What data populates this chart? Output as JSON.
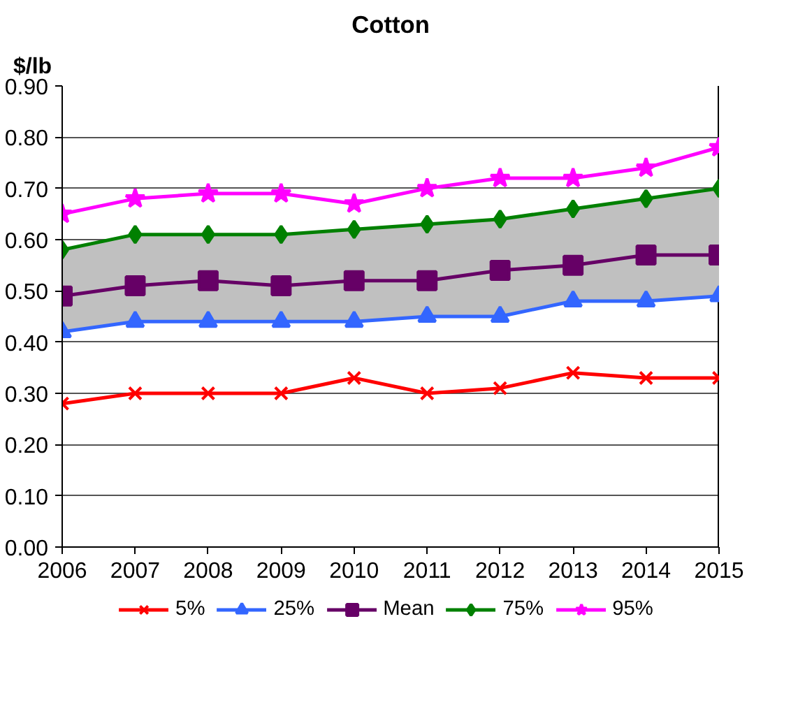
{
  "chart_data": {
    "type": "line",
    "title": "Cotton",
    "ylabel": "$/lb",
    "x": [
      2006,
      2007,
      2008,
      2009,
      2010,
      2011,
      2012,
      2013,
      2014,
      2015
    ],
    "xlim": [
      2006,
      2015
    ],
    "xticks": [
      2006,
      2007,
      2008,
      2009,
      2010,
      2011,
      2012,
      2013,
      2014,
      2015
    ],
    "ylim": [
      0,
      0.9
    ],
    "yticks": [
      {
        "value": 0,
        "label": "0.00"
      },
      {
        "value": 0.1,
        "label": "0.10"
      },
      {
        "value": 0.2,
        "label": "0.20"
      },
      {
        "value": 0.3,
        "label": "0.30"
      },
      {
        "value": 0.4,
        "label": "0.40"
      },
      {
        "value": 0.5,
        "label": "0.50"
      },
      {
        "value": 0.6,
        "label": "0.60"
      },
      {
        "value": 0.7,
        "label": "0.70"
      },
      {
        "value": 0.8,
        "label": "0.80"
      },
      {
        "value": 0.9,
        "label": "0.90"
      }
    ],
    "grid": "y",
    "legend": "bottom",
    "series": [
      {
        "name": "5%",
        "color": "#ff0000",
        "marker": "cross",
        "values": [
          0.28,
          0.3,
          0.3,
          0.3,
          0.33,
          0.3,
          0.31,
          0.34,
          0.33,
          0.33
        ]
      },
      {
        "name": "25%",
        "color": "#3366ff",
        "marker": "triangle",
        "values": [
          0.42,
          0.44,
          0.44,
          0.44,
          0.44,
          0.45,
          0.45,
          0.48,
          0.48,
          0.49
        ]
      },
      {
        "name": "Mean",
        "color": "#660066",
        "marker": "square",
        "values": [
          0.49,
          0.51,
          0.52,
          0.51,
          0.52,
          0.52,
          0.54,
          0.55,
          0.57,
          0.57
        ],
        "lower": [
          0.42,
          0.44,
          0.44,
          0.44,
          0.44,
          0.45,
          0.45,
          0.48,
          0.48,
          0.49
        ],
        "upper": [
          0.58,
          0.61,
          0.61,
          0.61,
          0.62,
          0.63,
          0.64,
          0.66,
          0.68,
          0.7
        ]
      },
      {
        "name": "75%",
        "color": "#008000",
        "marker": "diamond",
        "values": [
          0.58,
          0.61,
          0.61,
          0.61,
          0.62,
          0.63,
          0.64,
          0.66,
          0.68,
          0.7
        ]
      },
      {
        "name": "95%",
        "color": "#ff00ff",
        "marker": "star",
        "values": [
          0.65,
          0.68,
          0.69,
          0.69,
          0.67,
          0.7,
          0.72,
          0.72,
          0.74,
          0.78
        ]
      }
    ]
  }
}
